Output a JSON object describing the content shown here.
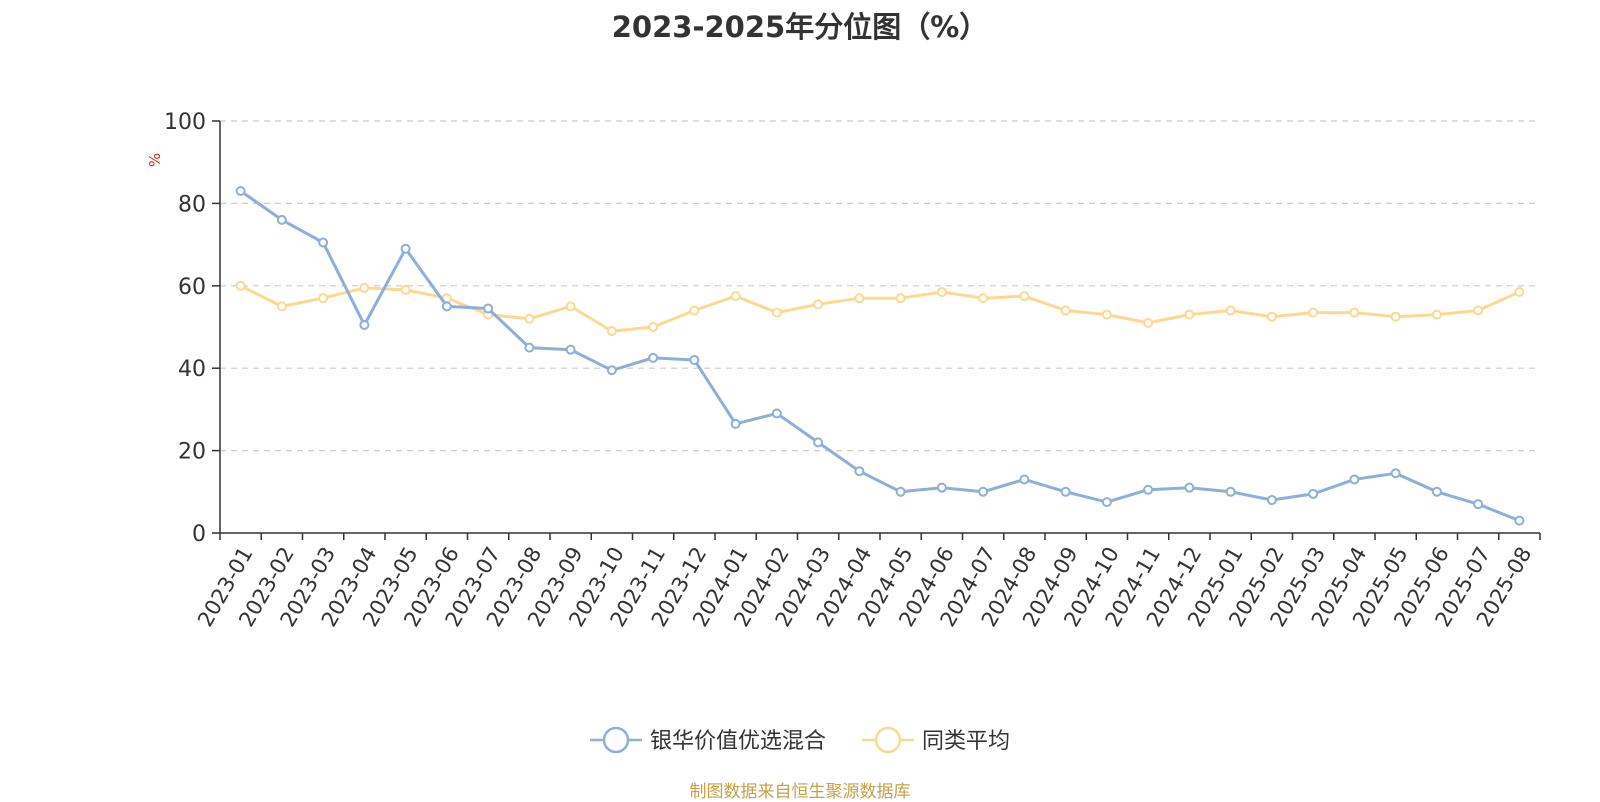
{
  "title": "2023-2025年分位图（%）",
  "source": "制图数据来自恒生聚源数据库",
  "colors": {
    "series1": "#8eaedb",
    "series2": "#fcd993",
    "axis": "#333333",
    "grid": "#cccccc",
    "yunit": "#e02020"
  },
  "chart_data": {
    "type": "line",
    "title": "2023-2025年分位图（%）",
    "ylabel": "%",
    "ylim": [
      0,
      100
    ],
    "yticks": [
      0,
      20,
      40,
      60,
      80,
      100
    ],
    "grid": true,
    "legend_position": "bottom-center",
    "x": [
      "2023-01",
      "2023-02",
      "2023-03",
      "2023-04",
      "2023-05",
      "2023-06",
      "2023-07",
      "2023-08",
      "2023-09",
      "2023-10",
      "2023-11",
      "2023-12",
      "2024-01",
      "2024-02",
      "2024-03",
      "2024-04",
      "2024-05",
      "2024-06",
      "2024-07",
      "2024-08",
      "2024-09",
      "2024-10",
      "2024-11",
      "2024-12",
      "2025-01",
      "2025-02",
      "2025-03",
      "2025-04",
      "2025-05",
      "2025-06",
      "2025-07",
      "2025-08"
    ],
    "series": [
      {
        "name": "银华价值优选混合",
        "values": [
          83,
          76,
          70.5,
          50.5,
          69,
          55,
          54.5,
          45,
          44.5,
          39.5,
          42.5,
          42,
          26.5,
          29,
          22,
          15,
          10,
          11,
          10,
          13,
          10,
          7.5,
          10.5,
          11,
          10,
          8,
          9.5,
          13,
          14.5,
          10,
          7,
          3
        ]
      },
      {
        "name": "同类平均",
        "values": [
          60,
          55,
          57,
          59.5,
          59,
          57,
          53,
          52,
          55,
          49,
          50,
          54,
          57.5,
          53.5,
          55.5,
          57,
          57,
          58.5,
          57,
          57.5,
          54,
          53,
          51,
          53,
          54,
          52.5,
          53.5,
          53.5,
          52.5,
          53,
          54,
          58.5
        ]
      }
    ]
  }
}
